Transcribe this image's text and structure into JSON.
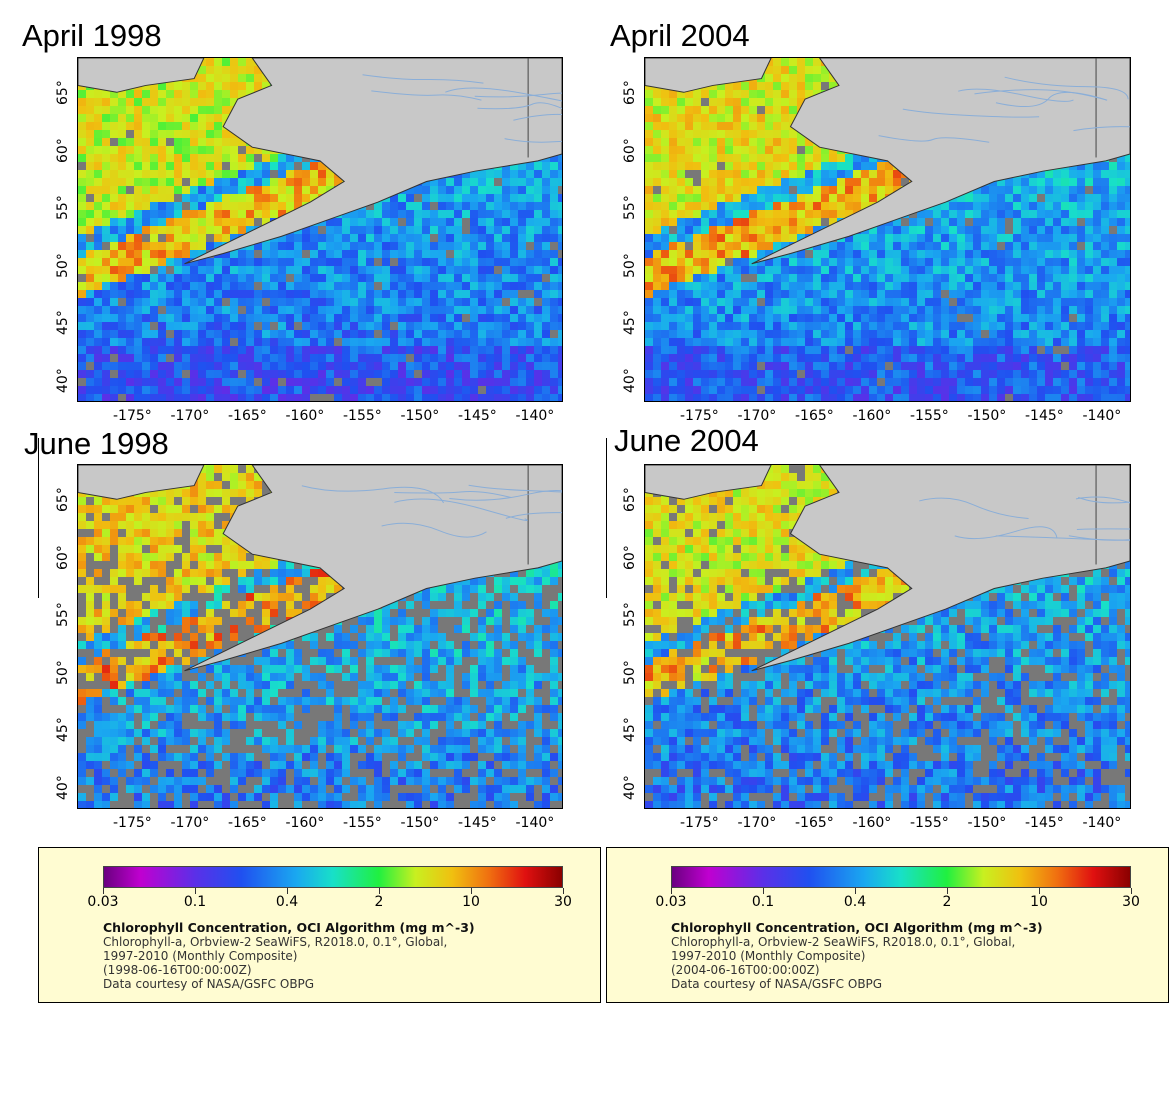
{
  "panels": [
    {
      "id": "apr1998",
      "title": "April 1998"
    },
    {
      "id": "apr2004",
      "title": "April 2004"
    },
    {
      "id": "jun1998",
      "title": "June 1998"
    },
    {
      "id": "jun2004",
      "title": "June 2004"
    }
  ],
  "lat_ticks": [
    "65°",
    "60°",
    "55°",
    "50°",
    "45°",
    "40°"
  ],
  "lon_ticks": [
    "-175°",
    "-170°",
    "-165°",
    "-160°",
    "-155°",
    "-150°",
    "-145°",
    "-140°"
  ],
  "legends": [
    {
      "scale_labels": [
        "0.03",
        "0.1",
        "0.4",
        "2",
        "10",
        "30"
      ],
      "title": "Chlorophyll Concentration, OCI Algorithm (mg m^-3)",
      "line1": "Chlorophyll-a, Orbview-2 SeaWiFS, R2018.0, 0.1°, Global,",
      "line2": "1997-2010 (Monthly Composite)",
      "line3": "(1998-06-16T00:00:00Z)",
      "line4": "Data courtesy of NASA/GSFC OBPG"
    },
    {
      "scale_labels": [
        "0.03",
        "0.1",
        "0.4",
        "2",
        "10",
        "30"
      ],
      "title": "Chlorophyll Concentration, OCI Algorithm (mg m^-3)",
      "line1": "Chlorophyll-a, Orbview-2 SeaWiFS, R2018.0, 0.1°, Global,",
      "line2": "1997-2010 (Monthly Composite)",
      "line3": "(2004-06-16T00:00:00Z)",
      "line4": "Data courtesy of NASA/GSFC OBPG"
    }
  ],
  "colors": {
    "land": "#c8c8c8",
    "no_data": "#787878",
    "river": "#8aaed8",
    "legend_bg": "#fffcd2"
  }
}
